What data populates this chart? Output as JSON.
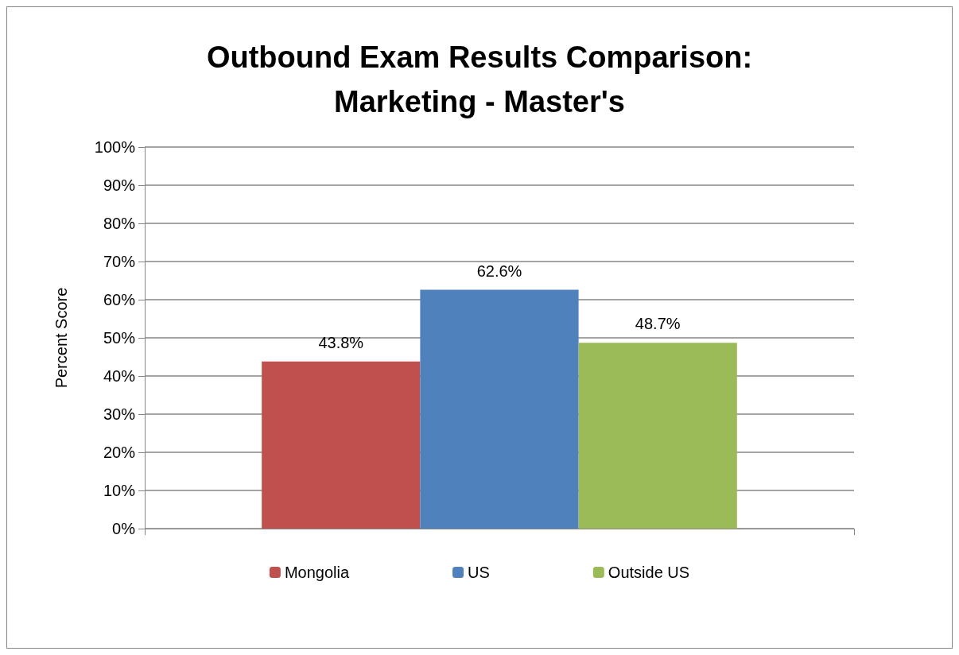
{
  "chart_data": {
    "type": "bar",
    "title": "Outbound Exam Results Comparison:\nMarketing - Master's",
    "ylabel": "Percent Score",
    "categories": [
      null
    ],
    "series": [
      {
        "name": "Mongolia",
        "color": "#c0504d",
        "values": [
          43.8
        ],
        "value_labels": [
          "43.8%"
        ]
      },
      {
        "name": "US",
        "color": "#4f81bd",
        "values": [
          62.6
        ],
        "value_labels": [
          "62.6%"
        ]
      },
      {
        "name": "Outside US",
        "color": "#9bbb59",
        "values": [
          48.7
        ],
        "value_labels": [
          "48.7%"
        ]
      }
    ],
    "ylim": [
      0,
      100
    ],
    "yticks": [
      {
        "value": 0,
        "label": "0%"
      },
      {
        "value": 10,
        "label": "10%"
      },
      {
        "value": 20,
        "label": "20%"
      },
      {
        "value": 30,
        "label": "30%"
      },
      {
        "value": 40,
        "label": "40%"
      },
      {
        "value": 50,
        "label": "50%"
      },
      {
        "value": 60,
        "label": "60%"
      },
      {
        "value": 70,
        "label": "70%"
      },
      {
        "value": 80,
        "label": "80%"
      },
      {
        "value": 90,
        "label": "90%"
      },
      {
        "value": 100,
        "label": "100%"
      }
    ],
    "grid": "y",
    "legend": "bottom"
  }
}
